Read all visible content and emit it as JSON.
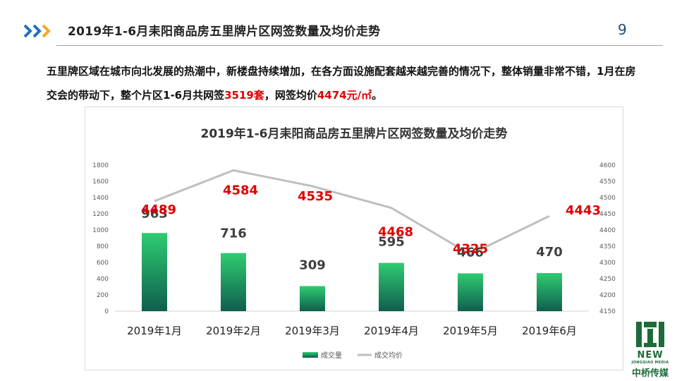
{
  "slide": {
    "title": "2019年1-6月耒阳商品房五里牌片区网签数量及均价走势",
    "page_number": "9",
    "paragraph": {
      "part1": "五里牌区域在城市向北发展的热潮中，新楼盘持续增加，在各方面设施配套越来越完善的情况下，整体销量非常不错，1月在房交会的带动下，整个片区1-6月共网签",
      "highlight1": "3519套",
      "part2": "，网签均价",
      "highlight2": "4474元/㎡",
      "part3": "。"
    },
    "colors": {
      "accent_text": "#e00000",
      "bar_top": "#2ecc71",
      "bar_bottom": "#0f5e4e",
      "line": "#bfbfbf",
      "chevron_blue": "#1f6fc2",
      "chevron_orange": "#f5a623"
    },
    "logo": {
      "new": "NEW",
      "sub": "JONGQIAO MEDIA",
      "cn": "中桥传媒"
    }
  },
  "chart_data": {
    "type": "bar+line",
    "title": "2019年1-6月耒阳商品房五里牌片区网签数量及均价走势",
    "categories": [
      "2019年1月",
      "2019年2月",
      "2019年3月",
      "2019年4月",
      "2019年5月",
      "2019年6月"
    ],
    "series": [
      {
        "name": "成交量",
        "type": "bar",
        "axis": "left",
        "values": [
          963,
          716,
          309,
          595,
          466,
          470
        ]
      },
      {
        "name": "成交均价",
        "type": "line",
        "axis": "right",
        "values": [
          4489,
          4584,
          4535,
          4468,
          4325,
          4443
        ]
      }
    ],
    "y_left": {
      "min": 0,
      "max": 1800,
      "step": 200
    },
    "y_right": {
      "min": 4150,
      "max": 4600,
      "step": 50
    },
    "grid": false,
    "legend_position": "bottom"
  }
}
